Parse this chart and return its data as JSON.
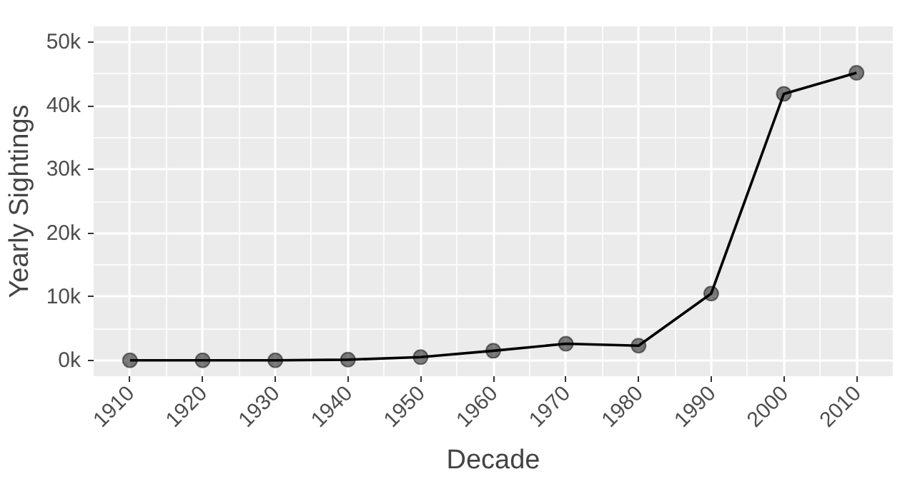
{
  "chart_data": {
    "type": "line",
    "xlabel": "Decade",
    "ylabel": "Yearly Sightings",
    "x": [
      1910,
      1920,
      1930,
      1940,
      1950,
      1960,
      1970,
      1980,
      1990,
      2000,
      2010
    ],
    "series": [
      {
        "color": "#000000",
        "values": [
          0,
          0,
          0,
          100,
          500,
          1500,
          2600,
          2300,
          10500,
          41900,
          45200
        ]
      }
    ],
    "xlim": [
      1905,
      2015
    ],
    "xticks": [
      1910,
      1920,
      1930,
      1940,
      1950,
      1960,
      1970,
      1980,
      1990,
      2000,
      2010
    ],
    "ylim": [
      -2500,
      52500
    ],
    "yticks": [
      {
        "value": 0,
        "label": "0k"
      },
      {
        "value": 10000,
        "label": "10k"
      },
      {
        "value": 20000,
        "label": "20k"
      },
      {
        "value": 30000,
        "label": "30k"
      },
      {
        "value": 40000,
        "label": "40k"
      },
      {
        "value": 50000,
        "label": "50k"
      }
    ],
    "grid": true,
    "marker": "circle",
    "line_style": "solid"
  }
}
